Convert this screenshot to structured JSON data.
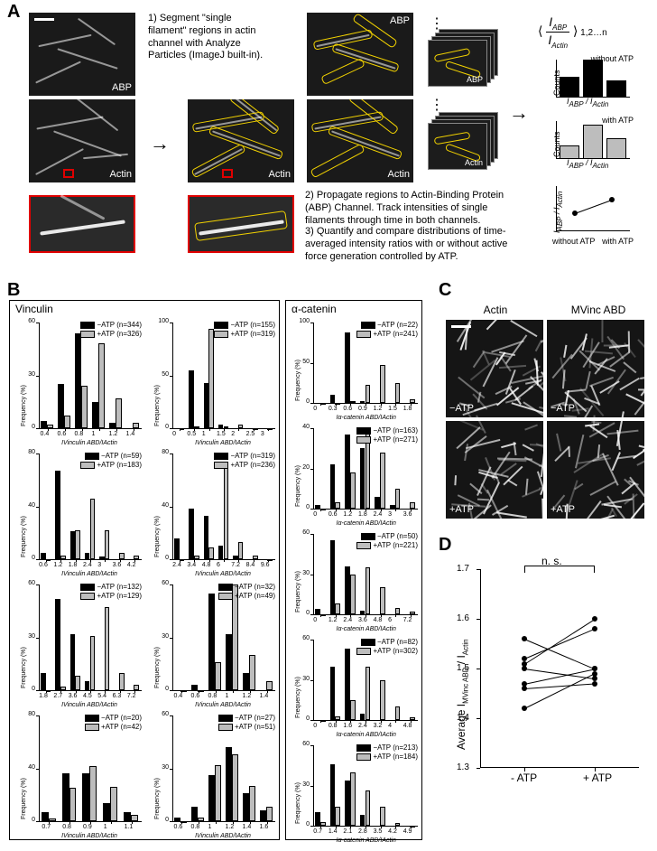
{
  "panelA": {
    "label": "A",
    "micrographs": {
      "abp": "ABP",
      "actin": "Actin"
    },
    "steps": {
      "s1": "1) Segment \"single filament\" regions in actin channel with Analyze Particles (ImageJ built-in).",
      "s2": "2) Propagate regions to Actin-Binding Protein (ABP) Channel. Track intensities of single filaments through time in both channels.",
      "s3": "3) Quantify and compare distributions of time-averaged intensity ratios with or without active force generation controlled by ATP."
    },
    "formula": "⟨ I_ABP / I_Actin ⟩ 1,2…n",
    "hist_without": {
      "title": "without ATP",
      "xlabel": "I_ABP / I_Actin",
      "ylabel": "Counts",
      "bars": [
        0.55,
        1.0,
        0.45
      ],
      "color": "#000000"
    },
    "hist_with": {
      "title": "with ATP",
      "xlabel": "I_ABP / I_Actin",
      "ylabel": "Counts",
      "bars": [
        0.35,
        0.9,
        0.55
      ],
      "color": "#bdbdbd"
    },
    "line": {
      "ylabel": "I_ABP / I_Actin",
      "xlabels": [
        "without ATP",
        "with ATP"
      ],
      "y": [
        0.4,
        0.7
      ]
    }
  },
  "panelB": {
    "label": "B",
    "ylabel": "Frequency (%)",
    "colors": {
      "minus": "#000000",
      "plus": "#bdbdbd"
    },
    "vinculin_title": "Vinculin",
    "acat_title": "α-catenin",
    "vinculin_xlabel": "I_Vinculin ABD / I_Actin",
    "acat_xlabel": "I_α-catenin ABD / I_Actin",
    "vinculin": [
      {
        "n_minus": 344,
        "n_plus": 326,
        "xticks": [
          0.4,
          0.6,
          0.8,
          1.0,
          1.2,
          1.4
        ],
        "ymax": 60,
        "minus": [
          4,
          25,
          54,
          15,
          3,
          0
        ],
        "plus": [
          2,
          7,
          24,
          48,
          17,
          3
        ]
      },
      {
        "n_minus": 155,
        "n_plus": 319,
        "xticks": [
          0.0,
          0.5,
          1.0,
          1.5,
          2.0,
          2.5,
          3.0
        ],
        "ymax": 100,
        "minus": [
          0,
          55,
          43,
          3,
          0,
          0,
          0
        ],
        "plus": [
          0,
          2,
          94,
          2,
          3,
          0,
          0
        ]
      },
      {
        "n_minus": 59,
        "n_plus": 183,
        "xticks": [
          0.6,
          1.2,
          1.8,
          2.4,
          3.0,
          3.6,
          4.2
        ],
        "ymax": 80,
        "minus": [
          5,
          67,
          21,
          5,
          2,
          0,
          0
        ],
        "plus": [
          0,
          3,
          22,
          46,
          22,
          5,
          3
        ]
      },
      {
        "n_minus": 319,
        "n_plus": 236,
        "xticks": [
          2.4,
          3.4,
          4.8,
          6.0,
          7.2,
          8.4,
          9.6
        ],
        "ymax": 80,
        "minus": [
          16,
          38,
          33,
          10,
          3,
          0,
          0
        ],
        "plus": [
          0,
          3,
          9,
          71,
          13,
          3,
          0
        ]
      },
      {
        "n_minus": 132,
        "n_plus": 129,
        "xticks": [
          1.8,
          2.7,
          3.6,
          4.5,
          5.4,
          6.3,
          7.2
        ],
        "ymax": 60,
        "minus": [
          10,
          52,
          32,
          5,
          0,
          0,
          0
        ],
        "plus": [
          0,
          2,
          8,
          31,
          47,
          10,
          3
        ]
      },
      {
        "n_minus": 32,
        "n_plus": 49,
        "xticks": [
          0.4,
          0.6,
          0.8,
          1.0,
          1.2,
          1.4
        ],
        "ymax": 60,
        "minus": [
          0,
          3,
          55,
          32,
          10,
          0
        ],
        "plus": [
          0,
          0,
          16,
          60,
          20,
          5
        ]
      },
      {
        "n_minus": 20,
        "n_plus": 42,
        "xticks": [
          0.7,
          0.8,
          0.9,
          1.0,
          1.1
        ],
        "ymax": 80,
        "minus": [
          7,
          36,
          36,
          14,
          7
        ],
        "plus": [
          2,
          25,
          42,
          26,
          5
        ]
      },
      {
        "n_minus": 27,
        "n_plus": 51,
        "xticks": [
          0.6,
          0.8,
          1.0,
          1.2,
          1.4,
          1.6
        ],
        "ymax": 60,
        "minus": [
          2,
          8,
          26,
          42,
          16,
          6
        ],
        "plus": [
          0,
          2,
          32,
          38,
          20,
          8
        ]
      }
    ],
    "acatenin": [
      {
        "n_minus": 22,
        "n_plus": 241,
        "xticks": [
          0.0,
          0.3,
          0.6,
          0.9,
          1.2,
          1.5,
          1.8
        ],
        "ymax": 100,
        "minus": [
          0,
          10,
          88,
          2,
          0,
          0,
          0
        ],
        "plus": [
          0,
          0,
          2,
          22,
          47,
          25,
          5
        ]
      },
      {
        "n_minus": 163,
        "n_plus": 271,
        "xticks": [
          0.0,
          0.6,
          1.2,
          1.8,
          2.4,
          3.0,
          3.6
        ],
        "ymax": 40,
        "minus": [
          2,
          22,
          37,
          30,
          6,
          2,
          0
        ],
        "plus": [
          0,
          3,
          18,
          38,
          28,
          10,
          3
        ]
      },
      {
        "n_minus": 50,
        "n_plus": 221,
        "xticks": [
          0.0,
          1.2,
          2.4,
          3.6,
          4.8,
          6.0,
          7.2
        ],
        "ymax": 60,
        "minus": [
          4,
          55,
          36,
          3,
          0,
          0,
          0
        ],
        "plus": [
          0,
          8,
          30,
          35,
          20,
          5,
          2
        ]
      },
      {
        "n_minus": 82,
        "n_plus": 302,
        "xticks": [
          0.0,
          0.8,
          1.6,
          2.4,
          3.2,
          4.0,
          4.8
        ],
        "ymax": 60,
        "minus": [
          0,
          40,
          53,
          5,
          0,
          0,
          0
        ],
        "plus": [
          0,
          3,
          15,
          40,
          30,
          10,
          2
        ]
      },
      {
        "n_minus": 213,
        "n_plus": 184,
        "xticks": [
          0.7,
          1.4,
          2.1,
          2.8,
          3.5,
          4.2,
          4.9
        ],
        "ymax": 60,
        "minus": [
          10,
          46,
          34,
          8,
          0,
          0,
          0
        ],
        "plus": [
          3,
          14,
          40,
          26,
          14,
          2,
          0
        ]
      }
    ]
  },
  "panelC": {
    "label": "C",
    "headers": [
      "Actin",
      "MVinc ABD"
    ],
    "row_labels": [
      "−ATP",
      "+ATP"
    ]
  },
  "panelD": {
    "label": "D",
    "ylabel": "Average I_MVinc ABD / I_Actin",
    "xlabels": [
      "- ATP",
      "+ ATP"
    ],
    "yticks": [
      1.3,
      1.4,
      1.5,
      1.6,
      1.7
    ],
    "sig": "n. s.",
    "pairs": [
      [
        1.56,
        1.5
      ],
      [
        1.52,
        1.58
      ],
      [
        1.51,
        1.6
      ],
      [
        1.5,
        1.48
      ],
      [
        1.47,
        1.5
      ],
      [
        1.46,
        1.47
      ],
      [
        1.42,
        1.49
      ]
    ]
  }
}
